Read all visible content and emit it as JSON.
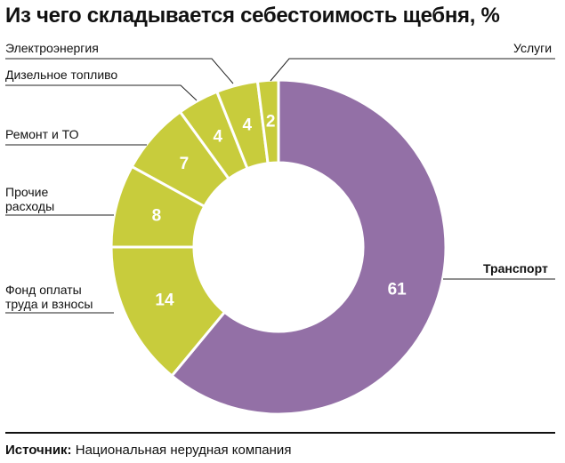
{
  "chart_data": {
    "type": "pie",
    "title": "Из чего складывается себестоимость щебня, %",
    "categories": [
      "Транспорт",
      "Фонд оплаты труда и взносы",
      "Прочие расходы",
      "Ремонт и ТО",
      "Дизельное топливо",
      "Электроэнергия",
      "Услуги"
    ],
    "values": [
      61,
      14,
      8,
      7,
      4,
      4,
      2
    ],
    "colors": [
      "#9370a6",
      "#c8cc3c",
      "#c8cc3c",
      "#c8cc3c",
      "#c8cc3c",
      "#c8cc3c",
      "#c8cc3c"
    ],
    "labels": {
      "transport": "Транспорт",
      "payroll_line1": "Фонд оплаты",
      "payroll_line2": "труда и взносы",
      "other_line1": "Прочие",
      "other_line2": "расходы",
      "repair": "Ремонт и ТО",
      "diesel": "Дизельное топливо",
      "electricity": "Электроэнергия",
      "services": "Услуги"
    }
  },
  "source": {
    "label": "Источник:",
    "text": "Национальная нерудная компания"
  }
}
